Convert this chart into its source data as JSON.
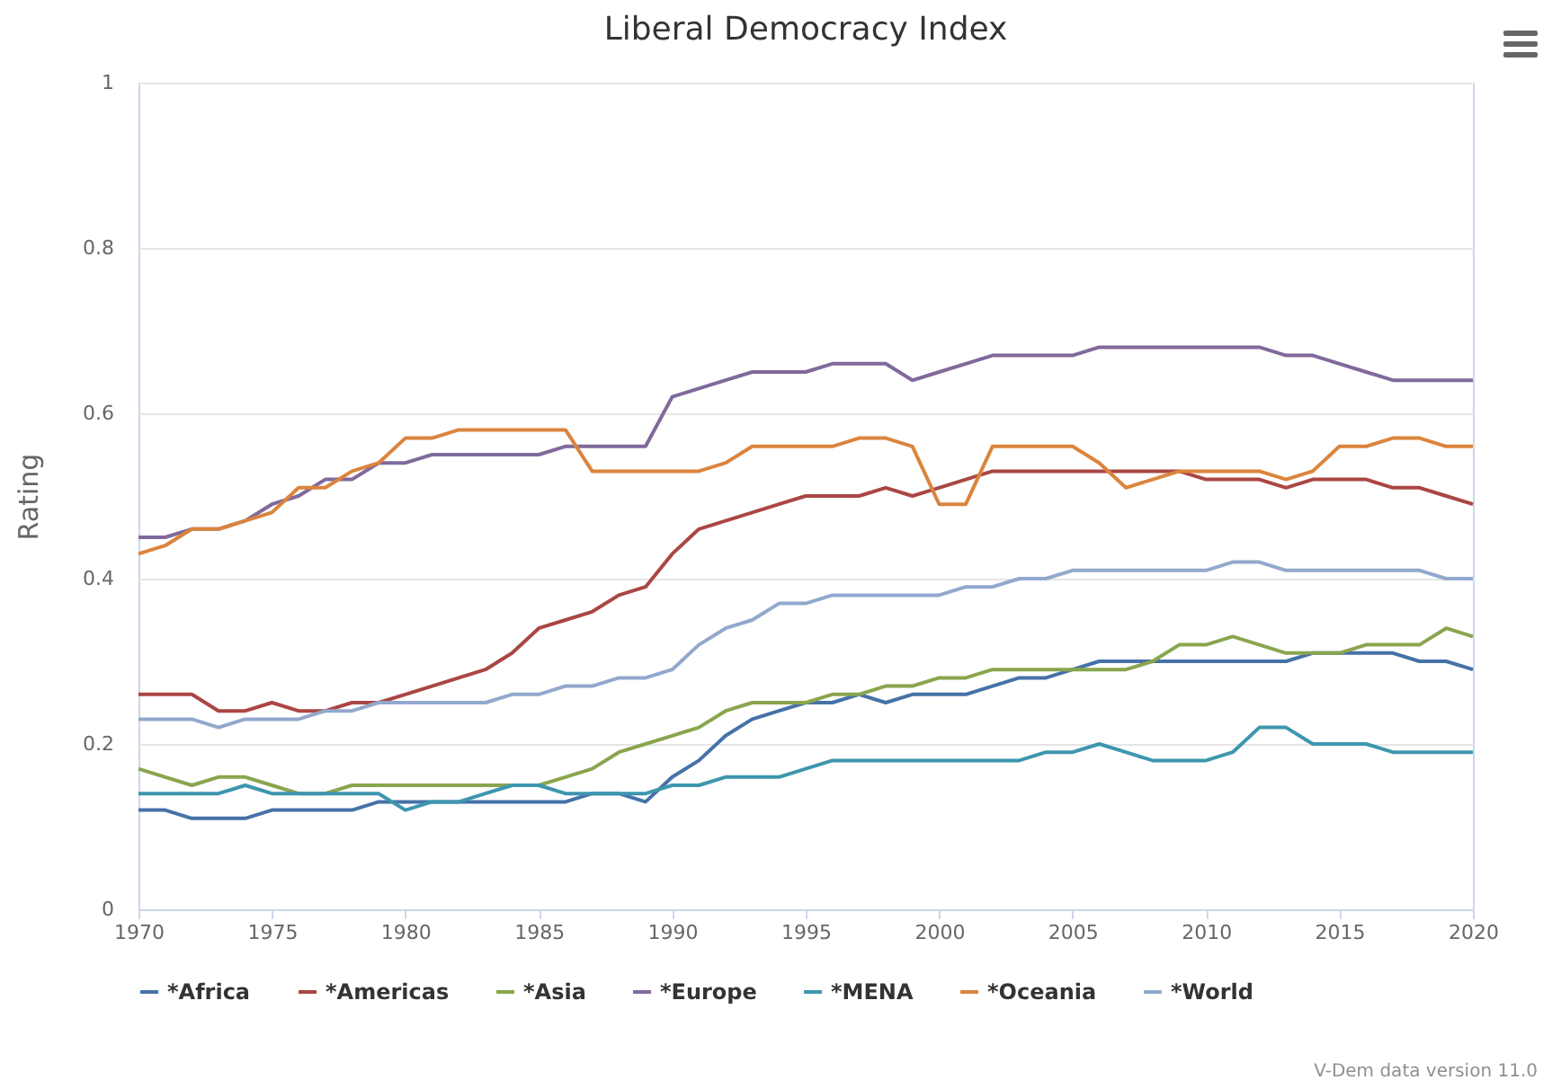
{
  "chart_data": {
    "type": "line",
    "title": "Liberal Democracy Index",
    "ylabel": "Rating",
    "x": [
      1970,
      1971,
      1972,
      1973,
      1974,
      1975,
      1976,
      1977,
      1978,
      1979,
      1980,
      1981,
      1982,
      1983,
      1984,
      1985,
      1986,
      1987,
      1988,
      1989,
      1990,
      1991,
      1992,
      1993,
      1994,
      1995,
      1996,
      1997,
      1998,
      1999,
      2000,
      2001,
      2002,
      2003,
      2004,
      2005,
      2006,
      2007,
      2008,
      2009,
      2010,
      2011,
      2012,
      2013,
      2014,
      2015,
      2016,
      2017,
      2018,
      2019,
      2020
    ],
    "series": [
      {
        "name": "*Africa",
        "color": "#4572a7",
        "values": [
          0.12,
          0.12,
          0.11,
          0.11,
          0.11,
          0.12,
          0.12,
          0.12,
          0.12,
          0.13,
          0.13,
          0.13,
          0.13,
          0.13,
          0.13,
          0.13,
          0.13,
          0.14,
          0.14,
          0.13,
          0.16,
          0.18,
          0.21,
          0.23,
          0.24,
          0.25,
          0.25,
          0.26,
          0.25,
          0.26,
          0.26,
          0.26,
          0.27,
          0.28,
          0.28,
          0.29,
          0.3,
          0.3,
          0.3,
          0.3,
          0.3,
          0.3,
          0.3,
          0.3,
          0.31,
          0.31,
          0.31,
          0.31,
          0.3,
          0.3,
          0.29
        ]
      },
      {
        "name": "*Americas",
        "color": "#aa4643",
        "values": [
          0.26,
          0.26,
          0.26,
          0.24,
          0.24,
          0.25,
          0.24,
          0.24,
          0.25,
          0.25,
          0.26,
          0.27,
          0.28,
          0.29,
          0.31,
          0.34,
          0.35,
          0.36,
          0.38,
          0.39,
          0.43,
          0.46,
          0.47,
          0.48,
          0.49,
          0.5,
          0.5,
          0.5,
          0.51,
          0.5,
          0.51,
          0.52,
          0.53,
          0.53,
          0.53,
          0.53,
          0.53,
          0.53,
          0.53,
          0.53,
          0.52,
          0.52,
          0.52,
          0.51,
          0.52,
          0.52,
          0.52,
          0.51,
          0.51,
          0.5,
          0.49
        ]
      },
      {
        "name": "*Asia",
        "color": "#89a54e",
        "values": [
          0.17,
          0.16,
          0.15,
          0.16,
          0.16,
          0.15,
          0.14,
          0.14,
          0.15,
          0.15,
          0.15,
          0.15,
          0.15,
          0.15,
          0.15,
          0.15,
          0.16,
          0.17,
          0.19,
          0.2,
          0.21,
          0.22,
          0.24,
          0.25,
          0.25,
          0.25,
          0.26,
          0.26,
          0.27,
          0.27,
          0.28,
          0.28,
          0.29,
          0.29,
          0.29,
          0.29,
          0.29,
          0.29,
          0.3,
          0.32,
          0.32,
          0.33,
          0.32,
          0.31,
          0.31,
          0.31,
          0.32,
          0.32,
          0.32,
          0.34,
          0.33
        ]
      },
      {
        "name": "*Europe",
        "color": "#80699b",
        "values": [
          0.45,
          0.45,
          0.46,
          0.46,
          0.47,
          0.49,
          0.5,
          0.52,
          0.52,
          0.54,
          0.54,
          0.55,
          0.55,
          0.55,
          0.55,
          0.55,
          0.56,
          0.56,
          0.56,
          0.56,
          0.62,
          0.63,
          0.64,
          0.65,
          0.65,
          0.65,
          0.66,
          0.66,
          0.66,
          0.64,
          0.65,
          0.66,
          0.67,
          0.67,
          0.67,
          0.67,
          0.68,
          0.68,
          0.68,
          0.68,
          0.68,
          0.68,
          0.68,
          0.67,
          0.67,
          0.66,
          0.65,
          0.64,
          0.64,
          0.64,
          0.64
        ]
      },
      {
        "name": "*MENA",
        "color": "#3d96ae",
        "values": [
          0.14,
          0.14,
          0.14,
          0.14,
          0.15,
          0.14,
          0.14,
          0.14,
          0.14,
          0.14,
          0.12,
          0.13,
          0.13,
          0.14,
          0.15,
          0.15,
          0.14,
          0.14,
          0.14,
          0.14,
          0.15,
          0.15,
          0.16,
          0.16,
          0.16,
          0.17,
          0.18,
          0.18,
          0.18,
          0.18,
          0.18,
          0.18,
          0.18,
          0.18,
          0.19,
          0.19,
          0.2,
          0.19,
          0.18,
          0.18,
          0.18,
          0.19,
          0.22,
          0.22,
          0.2,
          0.2,
          0.2,
          0.19,
          0.19,
          0.19,
          0.19
        ]
      },
      {
        "name": "*Oceania",
        "color": "#db843d",
        "values": [
          0.43,
          0.44,
          0.46,
          0.46,
          0.47,
          0.48,
          0.51,
          0.51,
          0.53,
          0.54,
          0.57,
          0.57,
          0.58,
          0.58,
          0.58,
          0.58,
          0.58,
          0.53,
          0.53,
          0.53,
          0.53,
          0.53,
          0.54,
          0.56,
          0.56,
          0.56,
          0.56,
          0.57,
          0.57,
          0.56,
          0.49,
          0.49,
          0.56,
          0.56,
          0.56,
          0.56,
          0.54,
          0.51,
          0.52,
          0.53,
          0.53,
          0.53,
          0.53,
          0.52,
          0.53,
          0.56,
          0.56,
          0.57,
          0.57,
          0.56,
          0.56
        ]
      },
      {
        "name": "*World",
        "color": "#92a8cd",
        "values": [
          0.23,
          0.23,
          0.23,
          0.22,
          0.23,
          0.23,
          0.23,
          0.24,
          0.24,
          0.25,
          0.25,
          0.25,
          0.25,
          0.25,
          0.26,
          0.26,
          0.27,
          0.27,
          0.28,
          0.28,
          0.29,
          0.32,
          0.34,
          0.35,
          0.37,
          0.37,
          0.38,
          0.38,
          0.38,
          0.38,
          0.38,
          0.39,
          0.39,
          0.4,
          0.4,
          0.41,
          0.41,
          0.41,
          0.41,
          0.41,
          0.41,
          0.42,
          0.42,
          0.41,
          0.41,
          0.41,
          0.41,
          0.41,
          0.41,
          0.4,
          0.4
        ]
      }
    ],
    "xlim": [
      1970,
      2020
    ],
    "xticks": [
      1970,
      1975,
      1980,
      1985,
      1990,
      1995,
      2000,
      2005,
      2010,
      2015,
      2020
    ],
    "ylim": [
      0,
      1
    ],
    "yticks": [
      0,
      0.2,
      0.4,
      0.6,
      0.8,
      1
    ],
    "grid": "y",
    "legend": "bottom",
    "marker": "none",
    "line_style": "solid",
    "annotations": [
      "V-Dem data version 11.0"
    ]
  }
}
